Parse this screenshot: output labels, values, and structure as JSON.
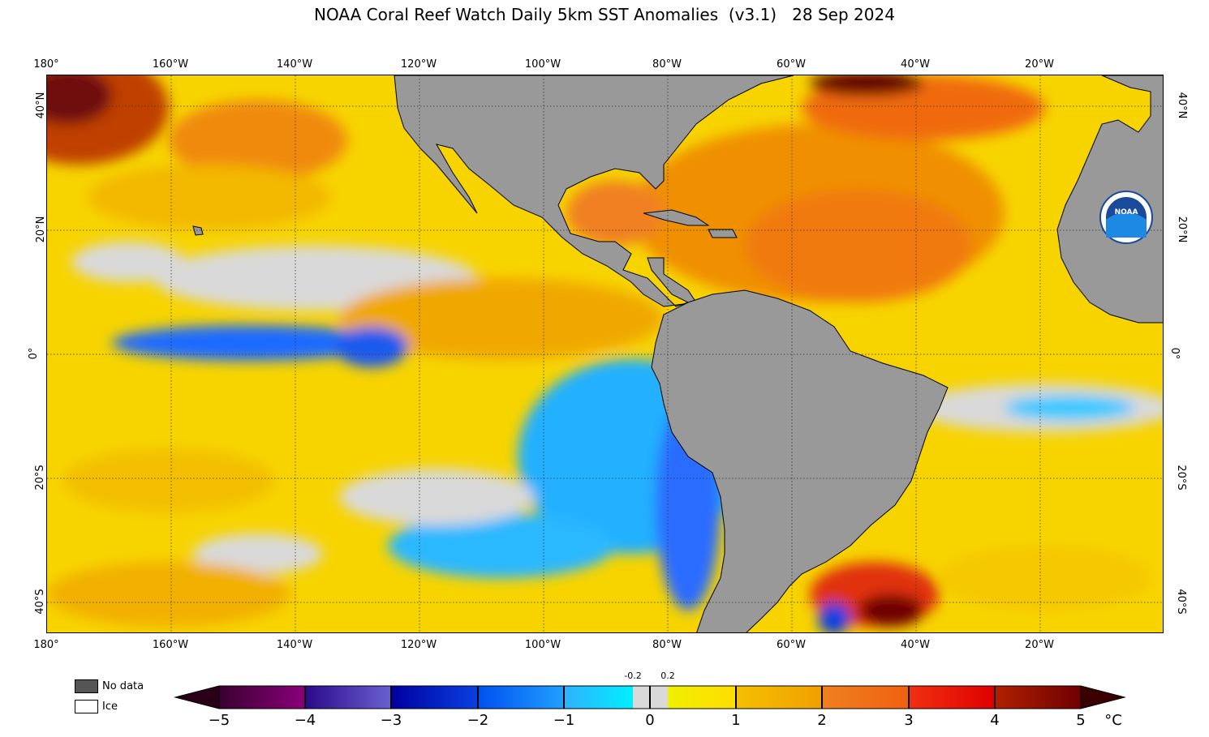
{
  "title": "NOAA Coral Reef Watch Daily 5km SST Anomalies  (v3.1)   28 Sep 2024",
  "longitude_labels": [
    "180°",
    "160°W",
    "140°W",
    "120°W",
    "100°W",
    "80°W",
    "60°W",
    "40°W",
    "20°W"
  ],
  "latitude_labels": [
    "40°N",
    "20°N",
    "0°",
    "20°S",
    "40°S"
  ],
  "legend": {
    "no_data": "No data",
    "ice": "Ice"
  },
  "colorbar": {
    "ticks": [
      "−5",
      "−4",
      "−3",
      "−2",
      "−1",
      "0",
      "1",
      "2",
      "3",
      "4",
      "5"
    ],
    "small_ticks": [
      "-0.2",
      "0.2"
    ],
    "unit": "°C",
    "colors": {
      "neg5_neg4": [
        "#3a0030",
        "#8a007a"
      ],
      "neg4_neg3": [
        "#2a0a8a",
        "#6a60d0"
      ],
      "neg3_neg2": [
        "#0000a0",
        "#0a40e0"
      ],
      "neg2_neg1": [
        "#0050f0",
        "#20a0ff"
      ],
      "neg1_neg02": [
        "#30b0ff",
        "#00f0ff"
      ],
      "neutral": "#d9d9d9",
      "p02_1": [
        "#f0f000",
        "#ffdd00"
      ],
      "p1_2": [
        "#f5c000",
        "#f0a000"
      ],
      "p2_3": [
        "#f08020",
        "#f06010"
      ],
      "p3_4": [
        "#f03010",
        "#e00000"
      ],
      "p4_5": [
        "#b02000",
        "#700000"
      ]
    }
  },
  "logo": {
    "text": "NOAA"
  }
}
